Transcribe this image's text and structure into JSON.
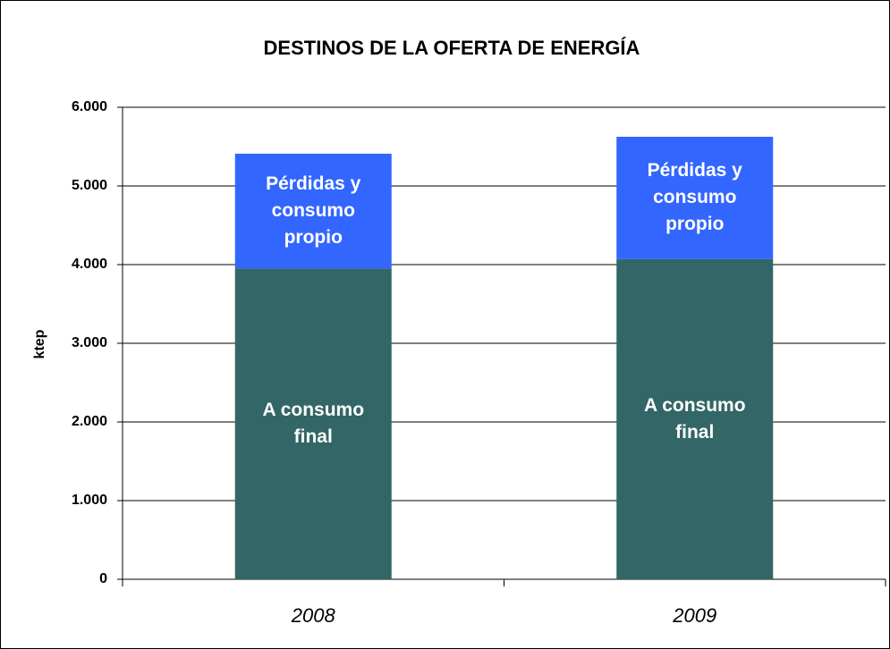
{
  "chart_data": {
    "type": "stacked_bar",
    "title": "DESTINOS DE LA OFERTA DE ENERGÍA",
    "y_label": "ktep",
    "categories": [
      "2008",
      "2009"
    ],
    "series": [
      {
        "name": "A consumo final",
        "color": "#336666",
        "values": [
          3950,
          4070
        ]
      },
      {
        "name": "Pérdidas y consumo propio",
        "color": "#3366ff",
        "values": [
          1460,
          1555
        ]
      }
    ],
    "ylim": [
      0,
      6000
    ],
    "yticks": [
      0,
      {
        "value": 1000,
        "label": "1.000"
      },
      {
        "value": 2000,
        "label": "2.000"
      },
      {
        "value": 3000,
        "label": "3.000"
      },
      {
        "value": 4000,
        "label": "4.000"
      },
      {
        "value": 5000,
        "label": "5.000"
      },
      {
        "value": 6000,
        "label": "6.000"
      }
    ],
    "grid": true
  }
}
